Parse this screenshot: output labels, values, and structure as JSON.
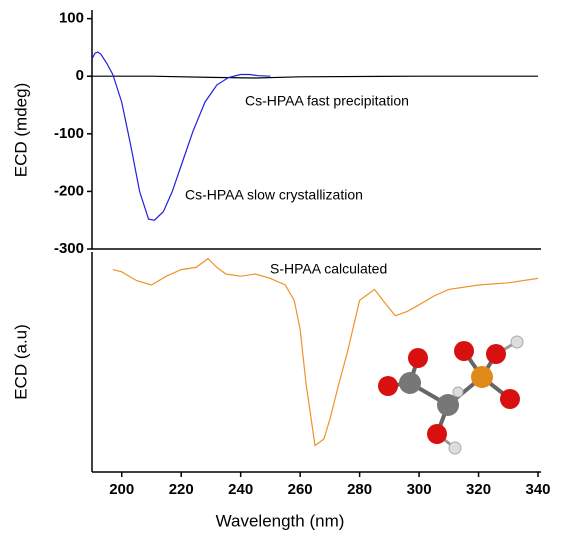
{
  "chart_data": [
    {
      "type": "line",
      "ylabel": "ECD (mdeg)",
      "xlim": [
        190,
        341
      ],
      "ylim": [
        -300,
        115
      ],
      "yticks": [
        100,
        0,
        -100,
        -200,
        -300
      ],
      "series": [
        {
          "name": "Cs-HPAA fast precipitation",
          "color": "#000000",
          "x": [
            190,
            210,
            230,
            245,
            260,
            300,
            340
          ],
          "values": [
            0,
            0,
            -2,
            -3,
            -1,
            0,
            0
          ]
        },
        {
          "name": "Cs-HPAA slow crystallization",
          "color": "#2020e0",
          "x": [
            190,
            191,
            192,
            193,
            195,
            197,
            200,
            203,
            206,
            209,
            211,
            214,
            217,
            220,
            224,
            228,
            232,
            236,
            240,
            243,
            246,
            250
          ],
          "values": [
            30,
            40,
            42,
            38,
            22,
            3,
            -45,
            -120,
            -200,
            -248,
            -250,
            -235,
            -200,
            -155,
            -95,
            -45,
            -15,
            -2,
            3,
            3,
            1,
            0
          ]
        }
      ]
    },
    {
      "type": "line",
      "ylabel": "ECD (a.u)",
      "xlabel": "Wavelength (nm)",
      "xlim": [
        190,
        341
      ],
      "ylim": [
        0,
        100
      ],
      "xticks": [
        200,
        220,
        240,
        260,
        280,
        300,
        320,
        340
      ],
      "series": [
        {
          "name": "S-HPAA calculated",
          "color": "#f0922a",
          "x": [
            197,
            200,
            205,
            210,
            215,
            220,
            225,
            229,
            232,
            235,
            240,
            245,
            250,
            255,
            258,
            260,
            262,
            265,
            268,
            270,
            273,
            276,
            280,
            285,
            289,
            292,
            296,
            300,
            305,
            310,
            320,
            330,
            340
          ],
          "values": [
            92,
            91,
            87,
            85,
            89,
            92,
            93,
            97,
            93,
            90,
            89,
            90,
            88,
            85,
            78,
            65,
            40,
            12,
            15,
            24,
            40,
            55,
            78,
            83,
            76,
            71,
            73,
            76,
            80,
            83,
            85,
            86,
            88
          ]
        }
      ]
    }
  ]
}
